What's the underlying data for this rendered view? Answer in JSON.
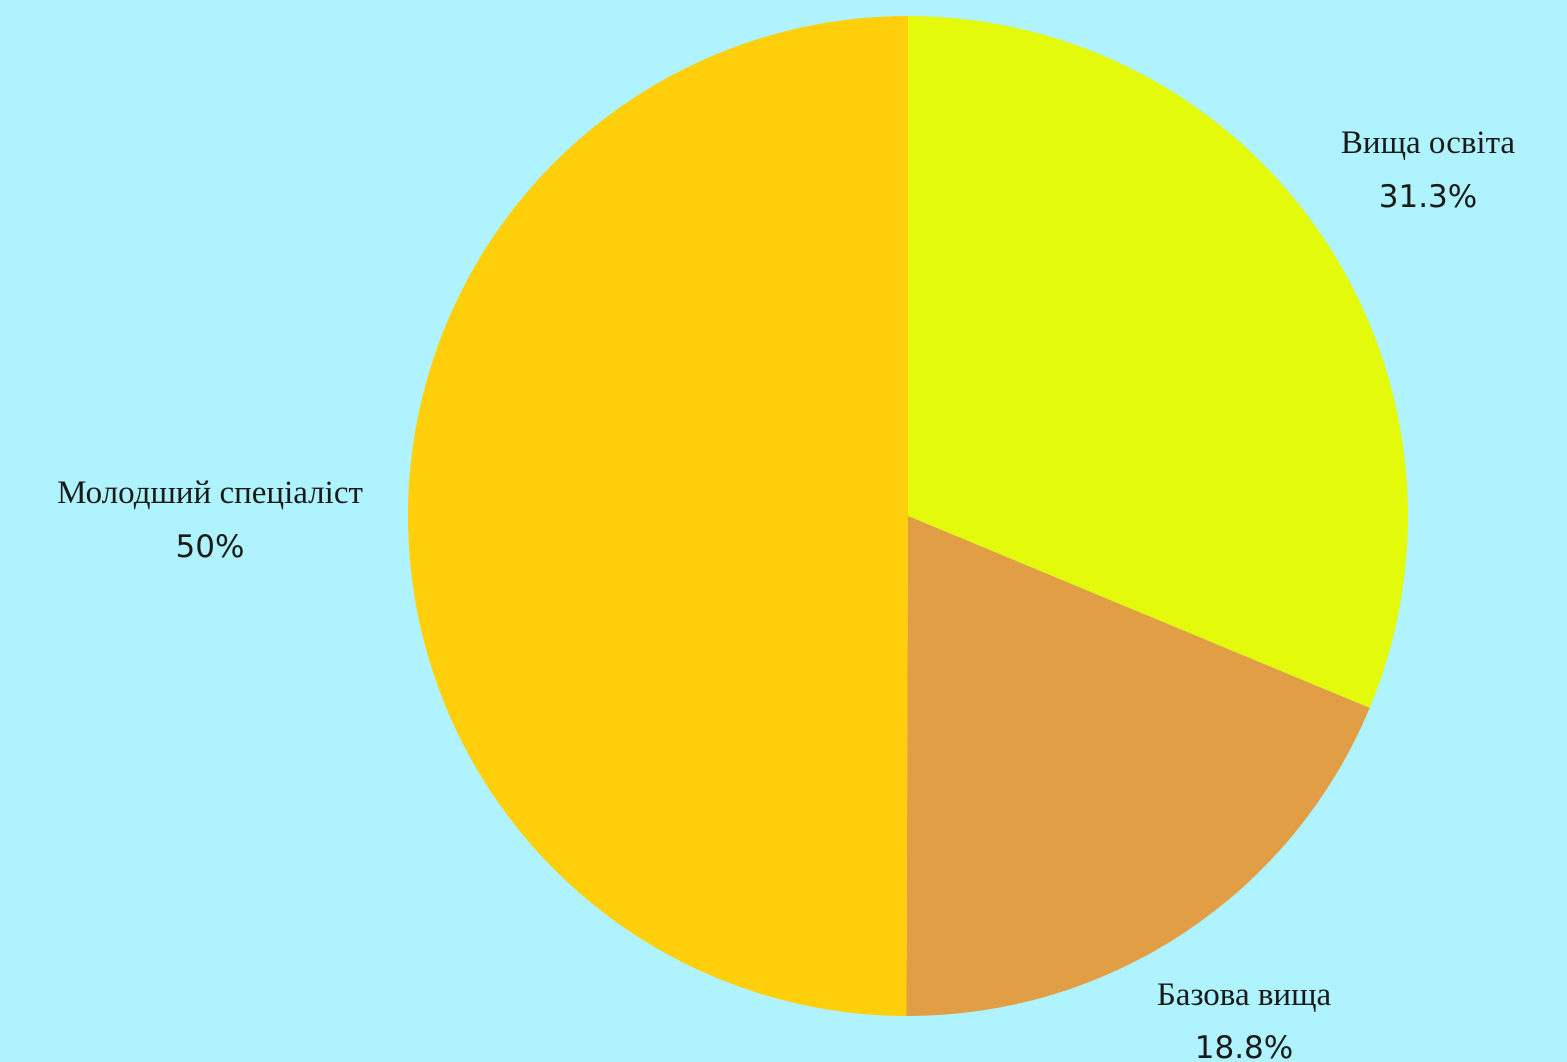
{
  "chart_data": {
    "type": "pie",
    "background": "#aef3fd",
    "legend": "none",
    "slices": [
      {
        "label": "Вища освіта",
        "value": 31.3,
        "value_label": "31.3%",
        "color": "#e3fa0a"
      },
      {
        "label": "Базова вища",
        "value": 18.8,
        "value_label": "18.8%",
        "color": "#e29e45"
      },
      {
        "label": "Молодший спеціаліст",
        "value": 50,
        "value_label": "50%",
        "color": "#fecf0a"
      }
    ]
  }
}
